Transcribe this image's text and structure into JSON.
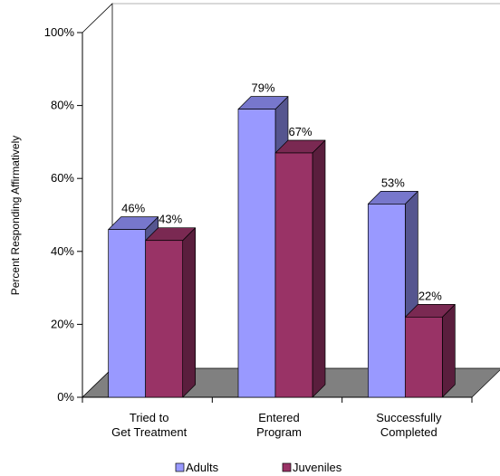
{
  "chart_data": {
    "type": "bar",
    "categories": [
      [
        "Tried to",
        "Get Treatment"
      ],
      [
        "Entered",
        "Program"
      ],
      [
        "Successfully",
        "Completed"
      ]
    ],
    "series": [
      {
        "name": "Adults",
        "values": [
          46,
          79,
          53
        ],
        "labels": [
          "46%",
          "79%",
          "53%"
        ]
      },
      {
        "name": "Juveniles",
        "values": [
          43,
          67,
          22
        ],
        "labels": [
          "43%",
          "67%",
          "22%"
        ]
      }
    ],
    "ylabel": "Percent Responding Affirmatively",
    "xlabel": "",
    "ylim": [
      0,
      100
    ],
    "yticks": [
      "0%",
      "20%",
      "40%",
      "60%",
      "80%",
      "100%"
    ],
    "grid": false,
    "legend_position": "bottom",
    "three_d": true
  },
  "colors": {
    "adults_front": "#9999ff",
    "adults_top": "#7777cc",
    "adults_side": "#55558f",
    "juveniles_front": "#993366",
    "juveniles_top": "#7a2952",
    "juveniles_side": "#5a1e3d",
    "floor": "#808080",
    "floor_edge": "#6a6a6a"
  }
}
